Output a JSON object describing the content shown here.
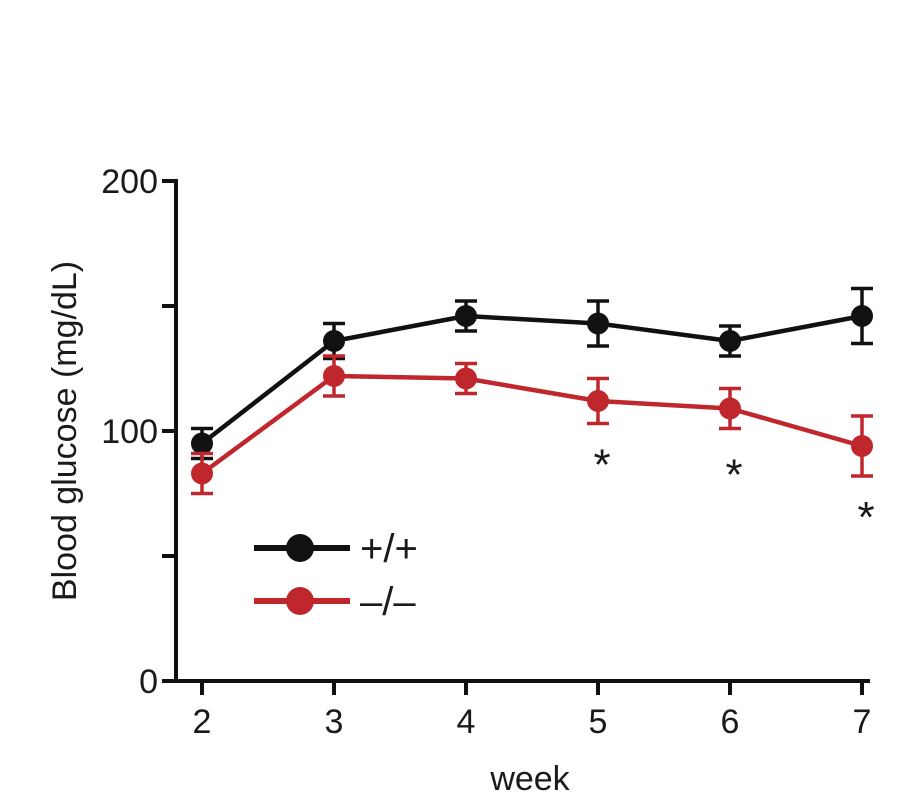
{
  "chart_data": {
    "type": "line",
    "title": "",
    "xlabel": "week",
    "ylabel": "Blood glucose (mg/dL)",
    "x": [
      2,
      3,
      4,
      5,
      6,
      7
    ],
    "xlim": [
      2,
      7
    ],
    "ylim": [
      0,
      200
    ],
    "x_tick_labels": [
      "2",
      "3",
      "4",
      "5",
      "6",
      "7"
    ],
    "y_ticks": [
      0,
      100,
      200
    ],
    "y_tick_labels": [
      "0",
      "100",
      "200"
    ],
    "y_minor_ticks": [
      50,
      150
    ],
    "grid": false,
    "legend_placement": "bottom-left",
    "series": [
      {
        "name": "+/+",
        "color": "#111111",
        "values": [
          95,
          136,
          146,
          143,
          136,
          146
        ],
        "error": [
          6,
          7,
          6,
          9,
          6,
          11
        ]
      },
      {
        "name": "–/–",
        "color": "#c0272d",
        "values": [
          83,
          122,
          121,
          112,
          109,
          94
        ],
        "error": [
          8,
          8,
          6,
          9,
          8,
          12
        ]
      }
    ],
    "annotations": [
      {
        "x": 5,
        "y": 87,
        "text": "*"
      },
      {
        "x": 6,
        "y": 83,
        "text": "*"
      },
      {
        "x": 7,
        "y": 66,
        "text": "*"
      }
    ]
  }
}
